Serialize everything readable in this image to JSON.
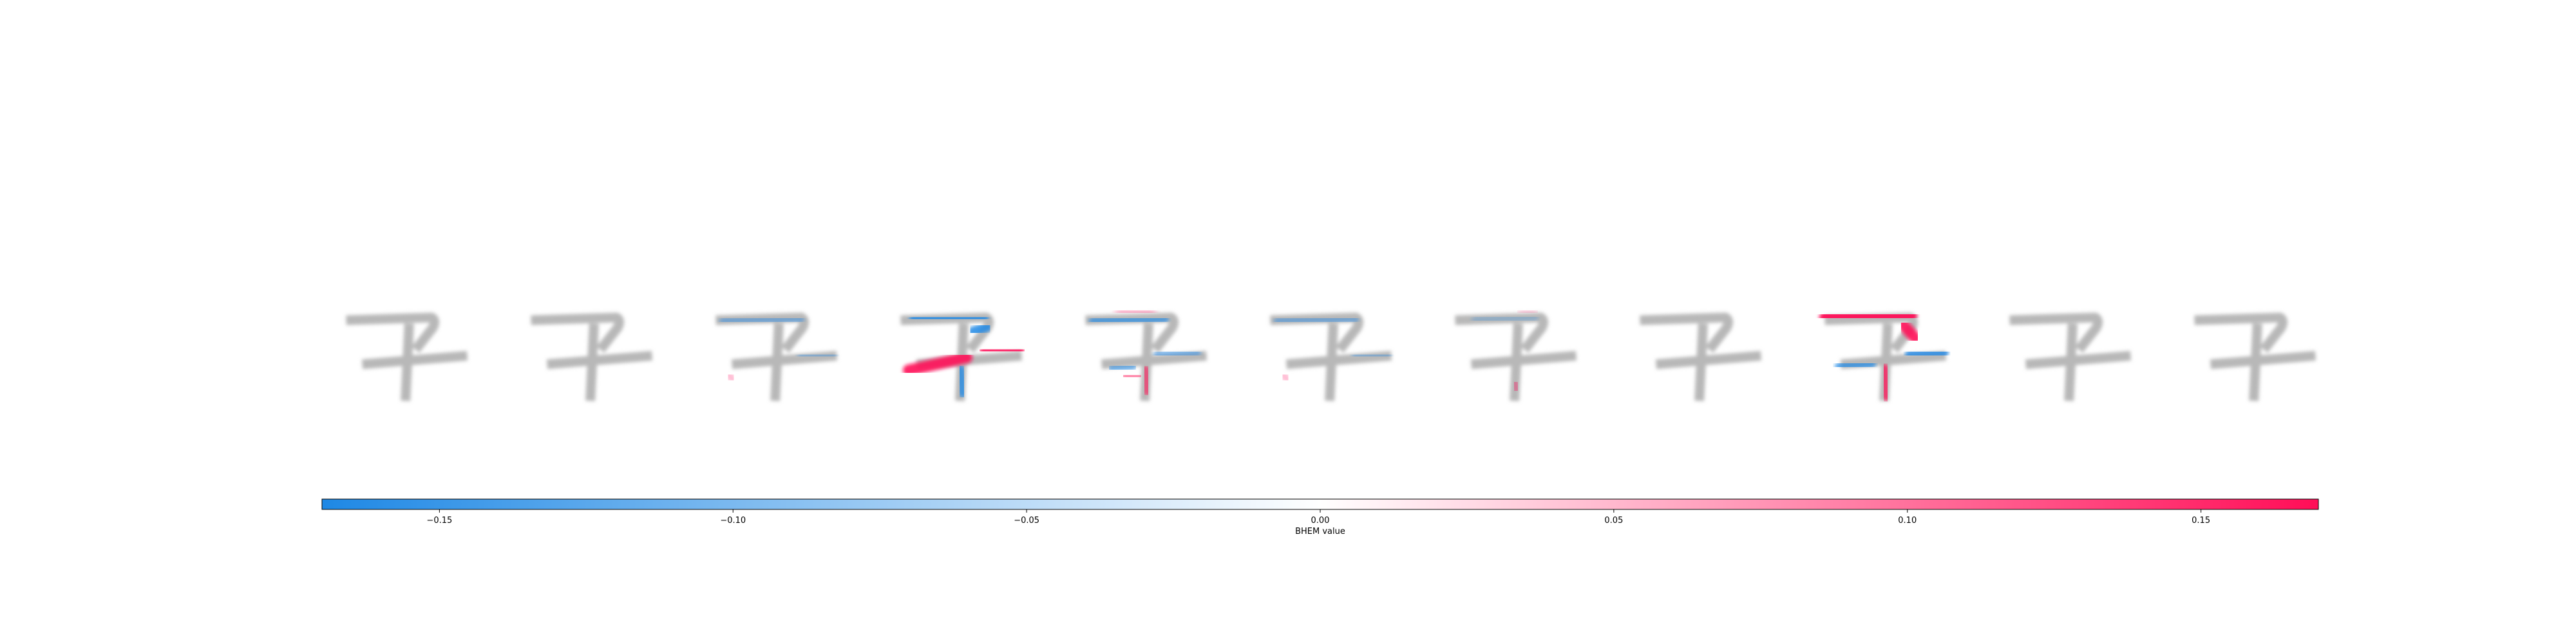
{
  "chart_data": {
    "type": "heatmap",
    "description_kind": "explanation-image-row",
    "panel_count": 11,
    "panels": [
      {
        "index": 0,
        "overlay": "none"
      },
      {
        "index": 1,
        "overlay": "none"
      },
      {
        "index": 2,
        "overlay": "light-blue"
      },
      {
        "index": 3,
        "overlay": "strong-mixed"
      },
      {
        "index": 4,
        "overlay": "mixed"
      },
      {
        "index": 5,
        "overlay": "light-blue"
      },
      {
        "index": 6,
        "overlay": "faint-mixed"
      },
      {
        "index": 7,
        "overlay": "none"
      },
      {
        "index": 8,
        "overlay": "strong-red"
      },
      {
        "index": 9,
        "overlay": "none"
      },
      {
        "index": 10,
        "overlay": "none"
      }
    ],
    "colorbar": {
      "min": -0.17,
      "max": 0.17,
      "ticks": [
        -0.15,
        -0.1,
        -0.05,
        0.0,
        0.05,
        0.1,
        0.15
      ],
      "tick_labels": [
        "−0.15",
        "−0.10",
        "−0.05",
        "0.00",
        "0.05",
        "0.10",
        "0.15"
      ],
      "label": "BHEM value",
      "color_negative": "#1e88e5",
      "color_zero": "#ffffff",
      "color_positive": "#ff0d57"
    },
    "grid": false,
    "legend": "none"
  }
}
